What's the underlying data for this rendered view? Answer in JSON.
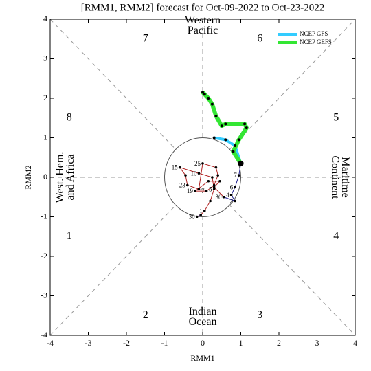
{
  "chart_data": {
    "type": "phase",
    "title": "[RMM1, RMM2] forecast for Oct-09-2022 to Oct-23-2022",
    "x_label": "RMM1",
    "y_label": "RMM2",
    "xlim": [
      -4,
      4
    ],
    "ylim": [
      -4,
      4
    ],
    "xticks": [
      -4,
      -3,
      -2,
      -1,
      0,
      1,
      2,
      3,
      4
    ],
    "yticks": [
      -4,
      -3,
      -2,
      -1,
      0,
      1,
      2,
      3,
      4
    ],
    "phase_labels": [
      "1",
      "2",
      "3",
      "4",
      "5",
      "6",
      "7",
      "8"
    ],
    "regions": [
      {
        "lines": [
          "Western",
          "Pacific"
        ]
      },
      {
        "lines": [
          "Indian",
          "Ocean"
        ]
      },
      {
        "lines": [
          "West. Hem.",
          "and Africa"
        ]
      },
      {
        "lines": [
          "Maritime",
          "Continent"
        ]
      }
    ],
    "tracks": [
      {
        "color": "#7b2f9b",
        "x": [
          -0.15,
          -0.05
        ],
        "y": [
          -1.0,
          -0.95
        ],
        "labels": [
          "30",
          null
        ]
      },
      {
        "color": "#b22222",
        "x": [
          -0.05,
          0.05,
          0.2,
          0.3,
          0.25,
          -0.1,
          -0.6,
          -0.45,
          -0.4,
          -0.1,
          0.0,
          0.35,
          0.4,
          0.3,
          0.1,
          -0.2,
          0.15,
          0.45,
          0.3,
          0.55
        ],
        "y": [
          -0.95,
          -0.85,
          -0.6,
          -0.3,
          0.0,
          0.1,
          0.25,
          0.05,
          -0.2,
          -0.3,
          0.35,
          0.25,
          0.05,
          -0.2,
          -0.35,
          -0.35,
          -0.1,
          -0.1,
          -0.25,
          -0.5
        ],
        "labels": [
          null,
          "1",
          null,
          "5",
          null,
          "10",
          "15",
          null,
          "23",
          null,
          "25",
          null,
          null,
          null,
          "7",
          "19",
          null,
          null,
          null,
          "30"
        ]
      },
      {
        "color": "#1a1a8c",
        "x": [
          0.55,
          0.85,
          0.75,
          0.85,
          0.95,
          1.0
        ],
        "y": [
          -0.5,
          -0.6,
          -0.45,
          -0.25,
          0.05,
          0.35
        ],
        "labels": [
          null,
          "2",
          "4",
          "6",
          "7",
          null
        ]
      }
    ],
    "series": [
      {
        "name": "NCEP GFS",
        "color": "#33ccff",
        "x": [
          1.0,
          0.85,
          0.6,
          0.3
        ],
        "y": [
          0.35,
          0.8,
          0.95,
          1.0
        ]
      },
      {
        "name": "NCEP GEFS",
        "color": "#33e633",
        "x": [
          1.0,
          0.8,
          0.95,
          1.15,
          1.1,
          0.6,
          0.5,
          0.35,
          0.25,
          0.15,
          0.05,
          0.0
        ],
        "y": [
          0.35,
          0.65,
          0.95,
          1.25,
          1.35,
          1.35,
          1.3,
          1.55,
          1.85,
          2.0,
          2.1,
          2.15
        ]
      }
    ]
  }
}
